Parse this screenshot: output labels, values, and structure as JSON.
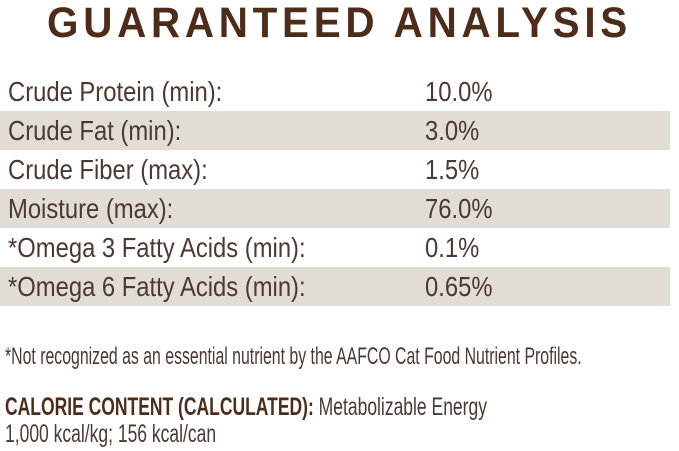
{
  "title": "GUARANTEED ANALYSIS",
  "colors": {
    "title_brown": "#4e2c1a",
    "body_text": "#4c3931",
    "stripe": "#e1dcd6",
    "background": "#ffffff"
  },
  "analysis_table": {
    "rows": [
      {
        "label": "Crude Protein (min):",
        "value": "10.0%"
      },
      {
        "label": "Crude Fat (min):",
        "value": "3.0%"
      },
      {
        "label": "Crude Fiber (max):",
        "value": "1.5%"
      },
      {
        "label": "Moisture (max):",
        "value": "76.0%"
      },
      {
        "label": "*Omega 3 Fatty Acids (min):",
        "value": "0.1%"
      },
      {
        "label": "*Omega 6 Fatty Acids (min):",
        "value": "0.65%"
      }
    ]
  },
  "footnote": "*Not recognized as an essential nutrient by the AAFCO Cat Food Nutrient Profiles.",
  "calorie_content": {
    "heading": "CALORIE CONTENT (CALCULATED):",
    "description": "Metabolizable Energy",
    "values_line": "1,000 kcal/kg; 156 kcal/can"
  }
}
